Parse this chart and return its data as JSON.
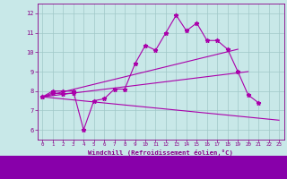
{
  "xlabel": "Windchill (Refroidissement éolien,°C)",
  "xlim": [
    -0.5,
    23.5
  ],
  "ylim": [
    5.5,
    12.5
  ],
  "xticks": [
    0,
    1,
    2,
    3,
    4,
    5,
    6,
    7,
    8,
    9,
    10,
    11,
    12,
    13,
    14,
    15,
    16,
    17,
    18,
    19,
    20,
    21,
    22,
    23
  ],
  "yticks": [
    6,
    7,
    8,
    9,
    10,
    11,
    12
  ],
  "background_color": "#c8e8e8",
  "grid_color": "#a0c8c8",
  "line_color": "#aa00aa",
  "spine_color": "#880088",
  "label_color": "#880088",
  "bottom_bar_color": "#8800aa",
  "line1_x": [
    0,
    1,
    2,
    3,
    4,
    5,
    6,
    7,
    8,
    9,
    10,
    11,
    12,
    13,
    14,
    15,
    16,
    17,
    18,
    19,
    20,
    21
  ],
  "line1_y": [
    7.7,
    8.0,
    8.0,
    8.0,
    6.0,
    7.5,
    7.6,
    8.1,
    8.1,
    9.4,
    10.35,
    10.1,
    11.0,
    11.9,
    11.1,
    11.5,
    10.6,
    10.6,
    10.15,
    9.0,
    7.8,
    7.4
  ],
  "line2_x": [
    0,
    1,
    2,
    3
  ],
  "line2_y": [
    7.7,
    7.9,
    7.85,
    7.9
  ],
  "line3_x": [
    0,
    23
  ],
  "line3_y": [
    7.7,
    6.5
  ],
  "line4_x": [
    0,
    19
  ],
  "line4_y": [
    7.7,
    10.15
  ],
  "line5_x": [
    0,
    20
  ],
  "line5_y": [
    7.7,
    9.0
  ],
  "figsize": [
    3.2,
    2.0
  ],
  "dpi": 100
}
